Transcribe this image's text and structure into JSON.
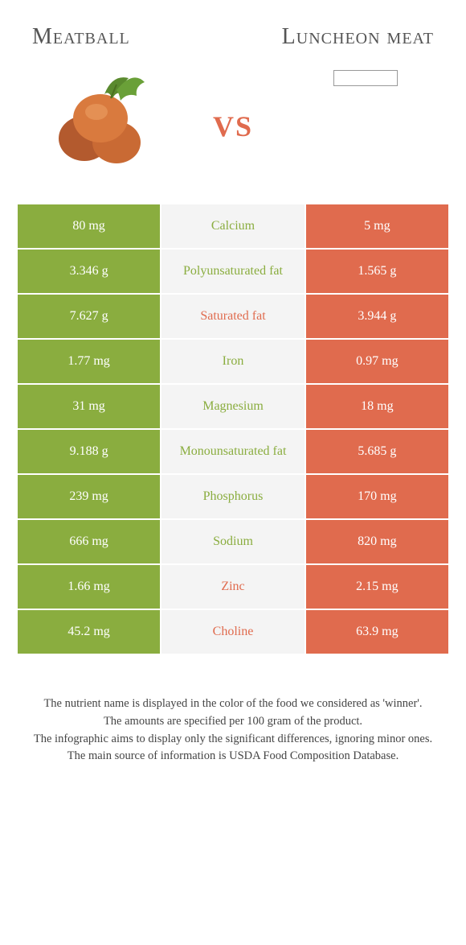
{
  "colors": {
    "left": "#8aad3f",
    "right": "#e06b4e",
    "mid_bg": "#f4f4f4",
    "header_text": "#555555"
  },
  "header": {
    "left_title": "Meatball",
    "right_title": "Luncheon meat",
    "vs": "vs"
  },
  "rows": [
    {
      "left": "80 mg",
      "label": "Calcium",
      "right": "5 mg",
      "winner": "left"
    },
    {
      "left": "3.346 g",
      "label": "Polyunsaturated fat",
      "right": "1.565 g",
      "winner": "left"
    },
    {
      "left": "7.627 g",
      "label": "Saturated fat",
      "right": "3.944 g",
      "winner": "right"
    },
    {
      "left": "1.77 mg",
      "label": "Iron",
      "right": "0.97 mg",
      "winner": "left"
    },
    {
      "left": "31 mg",
      "label": "Magnesium",
      "right": "18 mg",
      "winner": "left"
    },
    {
      "left": "9.188 g",
      "label": "Monounsaturated fat",
      "right": "5.685 g",
      "winner": "left"
    },
    {
      "left": "239 mg",
      "label": "Phosphorus",
      "right": "170 mg",
      "winner": "left"
    },
    {
      "left": "666 mg",
      "label": "Sodium",
      "right": "820 mg",
      "winner": "left"
    },
    {
      "left": "1.66 mg",
      "label": "Zinc",
      "right": "2.15 mg",
      "winner": "right"
    },
    {
      "left": "45.2 mg",
      "label": "Choline",
      "right": "63.9 mg",
      "winner": "right"
    }
  ],
  "footer": {
    "line1": "The nutrient name is displayed in the color of the food we considered as 'winner'.",
    "line2": "The amounts are specified per 100 gram of the product.",
    "line3": "The infographic aims to display only the significant differences, ignoring minor ones.",
    "line4": "The main source of information is USDA Food Composition Database."
  }
}
